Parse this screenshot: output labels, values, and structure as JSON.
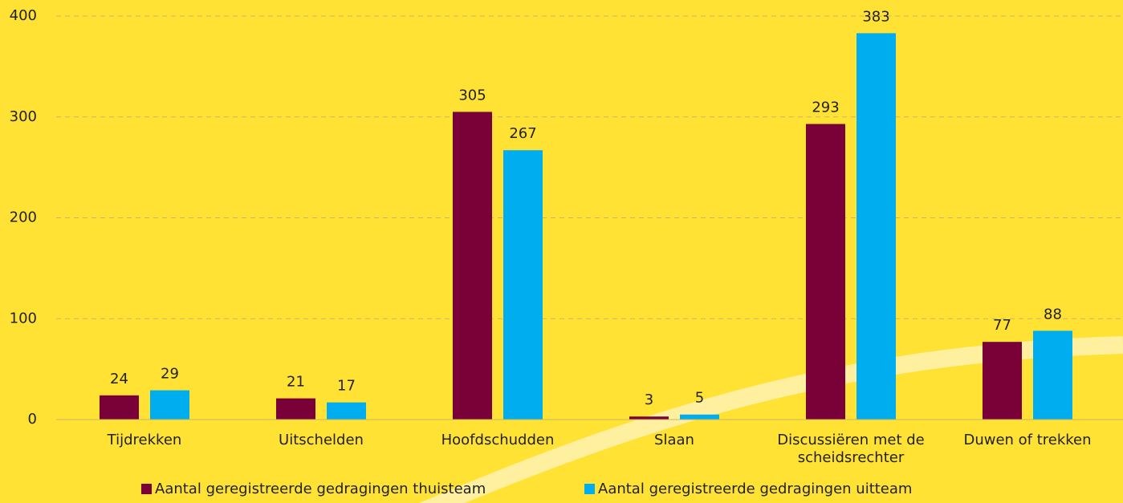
{
  "chart_data": {
    "type": "bar",
    "categories": [
      "Tijdrekken",
      "Uitschelden",
      "Hoofdschudden",
      "Slaan",
      "Discussiëren met de scheidsrechter",
      "Duwen of trekken"
    ],
    "series": [
      {
        "name": "Aantal geregistreerde gedragingen thuisteam",
        "color": "#7a0038",
        "values": [
          24,
          21,
          305,
          3,
          293,
          77
        ]
      },
      {
        "name": "Aantal geregistreerde gedragingen uitteam",
        "color": "#00aeef",
        "values": [
          29,
          17,
          267,
          5,
          383,
          88
        ]
      }
    ],
    "ylim": [
      0,
      400
    ],
    "yticks": [
      0,
      100,
      200,
      300,
      400
    ],
    "grid": true,
    "legend": "bottom"
  }
}
